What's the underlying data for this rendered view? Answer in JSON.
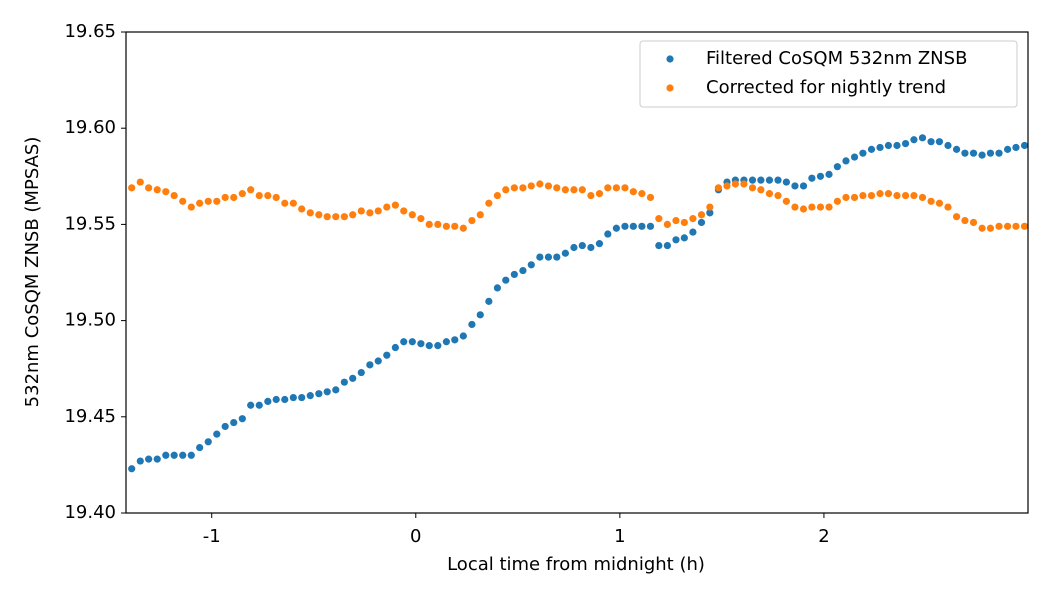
{
  "chart_data": {
    "type": "scatter",
    "xlabel": "Local time from midnight (h)",
    "ylabel": "532nm CoSQM ZNSB (MPSAS)",
    "xlim": [
      -1.42,
      3.0
    ],
    "ylim": [
      19.4,
      19.65
    ],
    "xticks": [
      -1,
      0,
      1,
      2
    ],
    "yticks": [
      {
        "value": 19.4,
        "label": "19.40"
      },
      19.45,
      {
        "value": 19.5,
        "label": "19.50"
      },
      19.55,
      {
        "value": 19.6,
        "label": "19.60"
      },
      19.65
    ],
    "legend": "upper right",
    "x": [
      -1.392,
      -1.35,
      -1.309,
      -1.267,
      -1.225,
      -1.184,
      -1.142,
      -1.1,
      -1.059,
      -1.017,
      -0.975,
      -0.934,
      -0.892,
      -0.85,
      -0.809,
      -0.767,
      -0.725,
      -0.684,
      -0.642,
      -0.6,
      -0.559,
      -0.517,
      -0.475,
      -0.434,
      -0.392,
      -0.35,
      -0.309,
      -0.267,
      -0.225,
      -0.184,
      -0.142,
      -0.1,
      -0.059,
      -0.017,
      0.025,
      0.066,
      0.108,
      0.15,
      0.191,
      0.233,
      0.275,
      0.316,
      0.358,
      0.4,
      0.441,
      0.483,
      0.525,
      0.566,
      0.608,
      0.65,
      0.691,
      0.733,
      0.775,
      0.816,
      0.858,
      0.9,
      0.941,
      0.983,
      1.025,
      1.066,
      1.108,
      1.15,
      1.191,
      1.233,
      1.275,
      1.316,
      1.358,
      1.4,
      1.441,
      1.483,
      1.525,
      1.566,
      1.608,
      1.65,
      1.691,
      1.733,
      1.775,
      1.816,
      1.858,
      1.9,
      1.941,
      1.983,
      2.025,
      2.066,
      2.108,
      2.15,
      2.191,
      2.233,
      2.275,
      2.316,
      2.358,
      2.4,
      2.441,
      2.483,
      2.525,
      2.566,
      2.608,
      2.65,
      2.691,
      2.733,
      2.775,
      2.816,
      2.858,
      2.9,
      2.941,
      2.983
    ],
    "series": [
      {
        "name": "Filtered CoSQM 532nm ZNSB",
        "color": "#1f77b4",
        "values": [
          19.423,
          19.427,
          19.428,
          19.428,
          19.43,
          19.43,
          19.43,
          19.43,
          19.434,
          19.437,
          19.441,
          19.445,
          19.447,
          19.449,
          19.456,
          19.456,
          19.458,
          19.459,
          19.459,
          19.46,
          19.46,
          19.461,
          19.462,
          19.463,
          19.464,
          19.468,
          19.47,
          19.473,
          19.477,
          19.479,
          19.482,
          19.486,
          19.489,
          19.489,
          19.488,
          19.487,
          19.487,
          19.489,
          19.49,
          19.492,
          19.498,
          19.503,
          19.51,
          19.517,
          19.521,
          19.524,
          19.526,
          19.529,
          19.533,
          19.533,
          19.533,
          19.535,
          19.538,
          19.539,
          19.538,
          19.54,
          19.545,
          19.548,
          19.549,
          19.549,
          19.549,
          19.549,
          19.539,
          19.539,
          19.542,
          19.543,
          19.546,
          19.551,
          19.556,
          19.568,
          19.572,
          19.573,
          19.573,
          19.573,
          19.573,
          19.573,
          19.573,
          19.572,
          19.57,
          19.57,
          19.574,
          19.575,
          19.576,
          19.58,
          19.583,
          19.585,
          19.587,
          19.589,
          19.59,
          19.591,
          19.591,
          19.592,
          19.594,
          19.595,
          19.593,
          19.593,
          19.591,
          19.589,
          19.587,
          19.587,
          19.586,
          19.587,
          19.587,
          19.589,
          19.59,
          19.591
        ]
      },
      {
        "name": "Corrected for nightly trend",
        "color": "#ff7f0e",
        "values": [
          19.569,
          19.572,
          19.569,
          19.568,
          19.567,
          19.565,
          19.562,
          19.559,
          19.561,
          19.562,
          19.562,
          19.564,
          19.564,
          19.566,
          19.568,
          19.565,
          19.565,
          19.564,
          19.561,
          19.561,
          19.558,
          19.556,
          19.555,
          19.554,
          19.554,
          19.554,
          19.555,
          19.557,
          19.556,
          19.557,
          19.559,
          19.56,
          19.557,
          19.555,
          19.553,
          19.55,
          19.55,
          19.549,
          19.549,
          19.548,
          19.552,
          19.555,
          19.561,
          19.565,
          19.568,
          19.569,
          19.569,
          19.57,
          19.571,
          19.57,
          19.569,
          19.568,
          19.568,
          19.568,
          19.565,
          19.566,
          19.569,
          19.569,
          19.569,
          19.567,
          19.566,
          19.564,
          19.553,
          19.55,
          19.552,
          19.551,
          19.553,
          19.555,
          19.559,
          19.569,
          19.57,
          19.571,
          19.571,
          19.569,
          19.568,
          19.566,
          19.565,
          19.562,
          19.559,
          19.558,
          19.559,
          19.559,
          19.559,
          19.562,
          19.564,
          19.564,
          19.565,
          19.565,
          19.566,
          19.566,
          19.565,
          19.565,
          19.565,
          19.564,
          19.562,
          19.561,
          19.559,
          19.554,
          19.552,
          19.551,
          19.548,
          19.548,
          19.549,
          19.549,
          19.549,
          19.549
        ]
      }
    ]
  }
}
